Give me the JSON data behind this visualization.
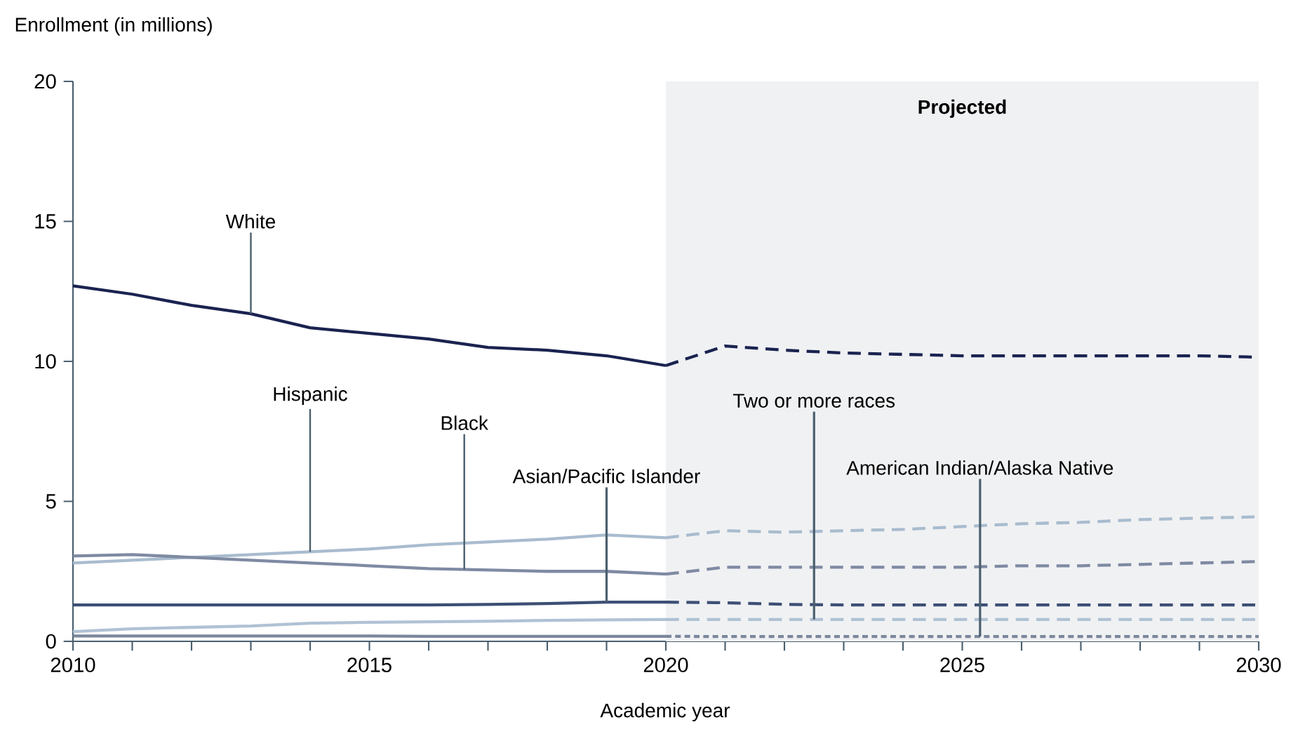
{
  "chart_data": {
    "type": "line",
    "xlabel": "Academic year",
    "ylabel": "Enrollment (in millions)",
    "x": [
      2010,
      2011,
      2012,
      2013,
      2014,
      2015,
      2016,
      2017,
      2018,
      2019,
      2020,
      2021,
      2022,
      2023,
      2024,
      2025,
      2026,
      2027,
      2028,
      2029,
      2030
    ],
    "xlim": [
      2010,
      2030
    ],
    "xticks": [
      2010,
      2015,
      2020,
      2025,
      2030
    ],
    "ylim": [
      0,
      20
    ],
    "yticks": [
      0,
      5,
      10,
      15,
      20
    ],
    "grid": false,
    "line_style": "solid",
    "bands": [
      {
        "axis": "x",
        "from": 2020,
        "to": 2030,
        "label": "Projected",
        "color": "#f0f1f3"
      }
    ],
    "series": [
      {
        "name": "White",
        "color": "#1a2350",
        "line_style": "dashed",
        "values": [
          12.7,
          12.4,
          12.0,
          11.7,
          11.2,
          11.0,
          10.8,
          10.5,
          10.4,
          10.2,
          9.85,
          10.55,
          10.4,
          10.3,
          10.25,
          10.2,
          10.2,
          10.2,
          10.2,
          10.2,
          10.15
        ]
      },
      {
        "name": "Hispanic",
        "color": "#a9bccf",
        "line_style": "dashed",
        "values": [
          2.8,
          2.9,
          3.0,
          3.1,
          3.2,
          3.3,
          3.45,
          3.55,
          3.65,
          3.8,
          3.7,
          3.95,
          3.9,
          3.95,
          4.0,
          4.1,
          4.2,
          4.25,
          4.35,
          4.4,
          4.45
        ]
      },
      {
        "name": "Black",
        "color": "#7f8aa3",
        "line_style": "dashed",
        "values": [
          3.05,
          3.1,
          3.0,
          2.9,
          2.8,
          2.7,
          2.6,
          2.55,
          2.5,
          2.5,
          2.4,
          2.65,
          2.65,
          2.65,
          2.65,
          2.65,
          2.7,
          2.7,
          2.75,
          2.8,
          2.85
        ]
      },
      {
        "name": "Asian/Pacific Islander",
        "color": "#3d4f75",
        "line_style": "dashed",
        "values": [
          1.3,
          1.3,
          1.3,
          1.3,
          1.3,
          1.3,
          1.3,
          1.32,
          1.35,
          1.4,
          1.4,
          1.38,
          1.32,
          1.3,
          1.3,
          1.3,
          1.3,
          1.3,
          1.3,
          1.3,
          1.3
        ]
      },
      {
        "name": "Two or more races",
        "color": "#b0c2d4",
        "line_style": "dashed",
        "values": [
          0.35,
          0.45,
          0.5,
          0.55,
          0.65,
          0.68,
          0.7,
          0.72,
          0.75,
          0.77,
          0.78,
          0.78,
          0.78,
          0.78,
          0.78,
          0.78,
          0.78,
          0.78,
          0.78,
          0.78,
          0.78
        ]
      },
      {
        "name": "American Indian/Alaska Native",
        "color": "#7a879d",
        "line_style": "dotted",
        "values": [
          0.19,
          0.19,
          0.19,
          0.19,
          0.19,
          0.19,
          0.18,
          0.18,
          0.18,
          0.18,
          0.18,
          0.17,
          0.17,
          0.17,
          0.17,
          0.17,
          0.17,
          0.17,
          0.17,
          0.17,
          0.17
        ]
      }
    ]
  }
}
